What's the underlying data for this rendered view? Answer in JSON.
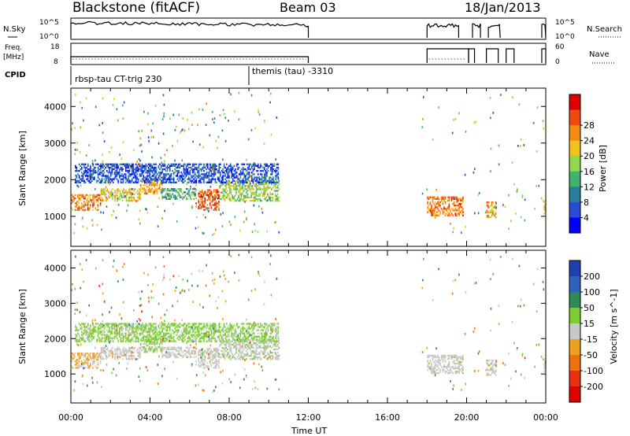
{
  "header": {
    "site": "Blackstone (fitACF)",
    "beam": "Beam 03",
    "date": "18/Jan/2013"
  },
  "strip_labels": {
    "nsky": "N.Sky",
    "nsky_hi": "10^5",
    "nsky_lo": "10^0",
    "nsearch": "N.Search",
    "nsearch_hi": "10^5",
    "nsearch_lo": "10^0",
    "freq_line1": "Freq.",
    "freq_line2": "[MHz]",
    "freq_hi": "18",
    "freq_lo": "8",
    "nave": "Nave",
    "nave_hi": "60",
    "nave_lo": "0",
    "cpid": "CPID",
    "cpid_a": "rbsp-tau CT-trig 230",
    "cpid_b": "themis (tau) -3310"
  },
  "colors": {
    "power": [
      "#0000ff",
      "#2a4bd7",
      "#2a7d9c",
      "#40b26a",
      "#8ed94c",
      "#f3c21a",
      "#f38a12",
      "#f04a10",
      "#e00000"
    ],
    "velocity": [
      "#2040b0",
      "#3060c0",
      "#2e8b57",
      "#7ccd32",
      "#c8c8c8",
      "#f0a020",
      "#f07010",
      "#e83010",
      "#e00000"
    ]
  },
  "chart_data": [
    {
      "type": "heatmap",
      "name": "power",
      "title": "",
      "xlabel": "Time UT",
      "ylabel": "Slant Range [km]",
      "x_ticks": [
        "00:00",
        "04:00",
        "08:00",
        "12:00",
        "16:00",
        "20:00",
        "00:00"
      ],
      "x_range_hours": [
        0,
        24
      ],
      "y_ticks": [
        1000,
        2000,
        3000,
        4000
      ],
      "ylim": [
        180,
        4500
      ],
      "colorbar": {
        "label": "Power [dB]",
        "ticks": [
          4,
          8,
          12,
          16,
          20,
          24,
          28
        ],
        "range": [
          0,
          32
        ]
      },
      "echo_bands": [
        {
          "t_start": 0.0,
          "t_end": 1.5,
          "r_start": 1200,
          "r_end": 1650,
          "level": 24
        },
        {
          "t_start": 1.5,
          "t_end": 3.5,
          "r_start": 1450,
          "r_end": 1800,
          "level": 20
        },
        {
          "t_start": 3.5,
          "t_end": 4.6,
          "r_start": 1650,
          "r_end": 2050,
          "level": 22
        },
        {
          "t_start": 4.6,
          "t_end": 6.3,
          "r_start": 1500,
          "r_end": 1800,
          "level": 12
        },
        {
          "t_start": 6.3,
          "t_end": 7.5,
          "r_start": 1200,
          "r_end": 1750,
          "level": 26
        },
        {
          "t_start": 7.5,
          "t_end": 10.5,
          "r_start": 1450,
          "r_end": 2000,
          "level": 16
        },
        {
          "t_start": 0.2,
          "t_end": 10.5,
          "r_start": 1950,
          "r_end": 2450,
          "level": 6
        },
        {
          "t_start": 18.0,
          "t_end": 19.8,
          "r_start": 1050,
          "r_end": 1550,
          "level": 24
        },
        {
          "t_start": 21.0,
          "t_end": 21.5,
          "r_start": 1000,
          "r_end": 1450,
          "level": 22
        },
        {
          "t_start": 23.9,
          "t_end": 24.0,
          "r_start": 1100,
          "r_end": 1500,
          "level": 20
        }
      ]
    },
    {
      "type": "heatmap",
      "name": "velocity",
      "title": "",
      "xlabel": "Time UT",
      "ylabel": "Slant Range [km]",
      "x_ticks": [
        "00:00",
        "04:00",
        "08:00",
        "12:00",
        "16:00",
        "20:00",
        "00:00"
      ],
      "x_range_hours": [
        0,
        24
      ],
      "y_ticks": [
        1000,
        2000,
        3000,
        4000
      ],
      "ylim": [
        180,
        4500
      ],
      "colorbar": {
        "label": "Velocity [m s^-1]",
        "ticks": [
          200,
          100,
          50,
          15,
          -15,
          -50,
          -100,
          -200
        ],
        "range": [
          -250,
          250
        ]
      },
      "echo_bands": [
        {
          "t_start": 0.0,
          "t_end": 1.5,
          "r_start": 1200,
          "r_end": 1650,
          "level": -30
        },
        {
          "t_start": 1.5,
          "t_end": 3.5,
          "r_start": 1450,
          "r_end": 1800,
          "level": 0
        },
        {
          "t_start": 3.5,
          "t_end": 4.6,
          "r_start": 1650,
          "r_end": 2050,
          "level": 30
        },
        {
          "t_start": 4.6,
          "t_end": 6.3,
          "r_start": 1500,
          "r_end": 1800,
          "level": 0
        },
        {
          "t_start": 6.3,
          "t_end": 7.5,
          "r_start": 1200,
          "r_end": 1750,
          "level": 0
        },
        {
          "t_start": 7.5,
          "t_end": 10.5,
          "r_start": 1450,
          "r_end": 2000,
          "level": 10
        },
        {
          "t_start": 0.2,
          "t_end": 10.5,
          "r_start": 1950,
          "r_end": 2450,
          "level": 40
        },
        {
          "t_start": 18.0,
          "t_end": 19.8,
          "r_start": 1050,
          "r_end": 1550,
          "level": 0
        },
        {
          "t_start": 21.0,
          "t_end": 21.5,
          "r_start": 1000,
          "r_end": 1450,
          "level": 0
        },
        {
          "t_start": 23.9,
          "t_end": 24.0,
          "r_start": 1100,
          "r_end": 1500,
          "level": 0
        }
      ]
    }
  ]
}
